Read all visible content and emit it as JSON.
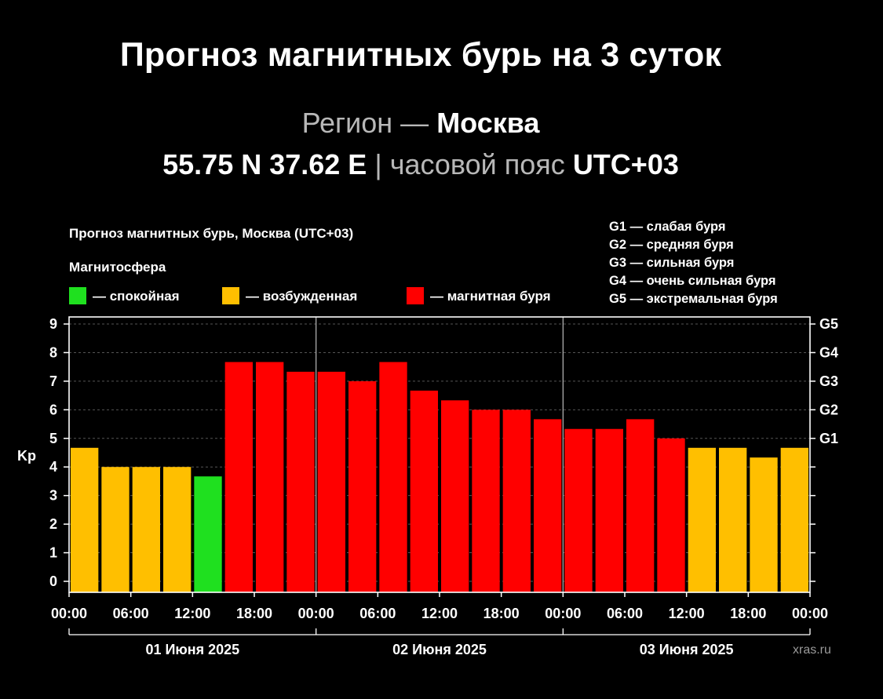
{
  "header": {
    "title": "Прогноз магнитных бурь на 3 суток",
    "region_label": "Регион —",
    "region_value": "Москва",
    "coords": "55.75 N 37.62 E",
    "separator": "|",
    "tz_label": "часовой пояс",
    "tz_value": "UTC+03"
  },
  "colors": {
    "calm": "#1fe01f",
    "excited": "#ffbf00",
    "storm": "#ff0000",
    "background": "#000000"
  },
  "legend": {
    "magnetosphere_title": "Магнитосфера",
    "items": [
      {
        "label": "— спокойная",
        "status": "calm"
      },
      {
        "label": "— возбужденная",
        "status": "excited"
      },
      {
        "label": "— магнитная буря",
        "status": "storm"
      }
    ],
    "g_scale": [
      "G1 — слабая буря",
      "G2 — средняя буря",
      "G3 — сильная буря",
      "G4 — очень сильная буря",
      "G5 — экстремальная буря"
    ]
  },
  "watermark": "xras.ru",
  "chart_data": {
    "type": "bar",
    "title": "Прогноз магнитных бурь, Москва (UTC+03)",
    "ylabel": "Kp",
    "ylim": [
      0,
      9
    ],
    "yticks": [
      "0",
      "1",
      "2",
      "3",
      "4",
      "5",
      "6",
      "7",
      "8",
      "9"
    ],
    "right_axis": [
      {
        "label": "G1",
        "kp": 5
      },
      {
        "label": "G2",
        "kp": 6
      },
      {
        "label": "G3",
        "kp": 7
      },
      {
        "label": "G4",
        "kp": 8
      },
      {
        "label": "G5",
        "kp": 9
      }
    ],
    "xtick_labels": [
      "00:00",
      "06:00",
      "12:00",
      "18:00",
      "00:00",
      "06:00",
      "12:00",
      "18:00",
      "00:00",
      "06:00",
      "12:00",
      "18:00",
      "00:00"
    ],
    "days": [
      "01 Июня 2025",
      "02 Июня 2025",
      "03 Июня 2025"
    ],
    "interval_hours": 3,
    "values": [
      4.67,
      4.0,
      4.0,
      4.0,
      3.67,
      7.67,
      7.67,
      7.33,
      7.33,
      7.0,
      7.67,
      6.67,
      6.33,
      6.0,
      6.0,
      5.67,
      5.33,
      5.33,
      5.67,
      5.0,
      4.67,
      4.67,
      4.33,
      4.67
    ],
    "status": [
      "excited",
      "excited",
      "excited",
      "excited",
      "calm",
      "storm",
      "storm",
      "storm",
      "storm",
      "storm",
      "storm",
      "storm",
      "storm",
      "storm",
      "storm",
      "storm",
      "storm",
      "storm",
      "storm",
      "storm",
      "excited",
      "excited",
      "excited",
      "excited"
    ],
    "grid": true
  }
}
